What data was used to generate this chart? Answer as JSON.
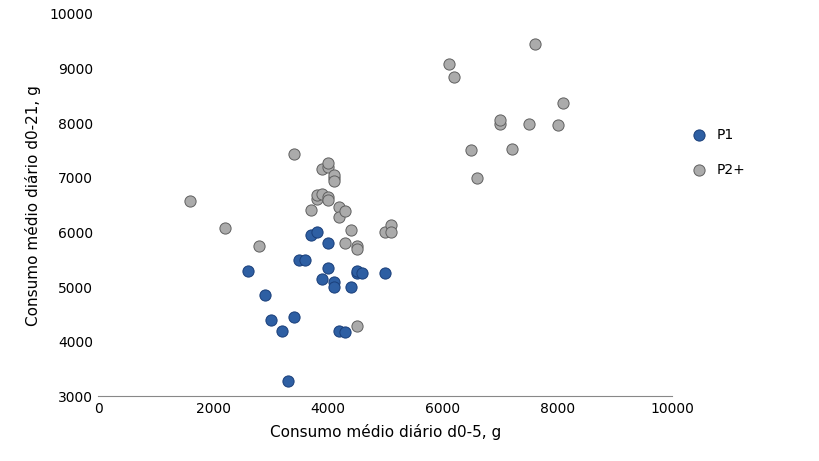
{
  "p1_x": [
    2600,
    2900,
    3000,
    3200,
    3300,
    3400,
    3500,
    3600,
    3700,
    3800,
    3900,
    4000,
    4000,
    4100,
    4100,
    4200,
    4300,
    4400,
    4500,
    4500,
    4600,
    5000
  ],
  "p1_y": [
    5300,
    4850,
    4400,
    4200,
    3280,
    4450,
    5500,
    5500,
    5950,
    6000,
    5150,
    5800,
    5350,
    5100,
    5000,
    4200,
    4180,
    5000,
    5250,
    5300,
    5250,
    5250
  ],
  "p2_x": [
    1600,
    2200,
    2800,
    3400,
    3700,
    3800,
    3800,
    3900,
    3900,
    4000,
    4000,
    4000,
    4000,
    4100,
    4100,
    4100,
    4200,
    4200,
    4300,
    4300,
    4400,
    4500,
    4500,
    4500,
    5000,
    5100,
    5100,
    6100,
    6200,
    6500,
    6600,
    7000,
    7000,
    7200,
    7500,
    7600,
    8000,
    8100
  ],
  "p2_y": [
    6580,
    6080,
    5750,
    7430,
    6420,
    6620,
    6680,
    7160,
    6700,
    6650,
    6600,
    7200,
    7280,
    7000,
    7050,
    6950,
    6460,
    6280,
    6400,
    5800,
    6050,
    5750,
    5700,
    4280,
    6000,
    6130,
    6000,
    9080,
    8850,
    7500,
    7000,
    7980,
    8050,
    7520,
    7990,
    9450,
    7970,
    8360
  ],
  "p1_color": "#2E5FA3",
  "p2_color": "#ABABAB",
  "p1_edge": "#1a3f7a",
  "p2_edge": "#606060",
  "xlabel": "Consumo médio diário d0-5, g",
  "ylabel": "Consumo médio diário d0-21, g",
  "xlim": [
    0,
    10000
  ],
  "ylim": [
    3000,
    10000
  ],
  "xticks": [
    0,
    2000,
    4000,
    6000,
    8000,
    10000
  ],
  "yticks": [
    3000,
    4000,
    5000,
    6000,
    7000,
    8000,
    9000,
    10000
  ],
  "marker_size": 65,
  "legend_labels": [
    "P1",
    "P2+"
  ],
  "bg_color": "#ffffff"
}
